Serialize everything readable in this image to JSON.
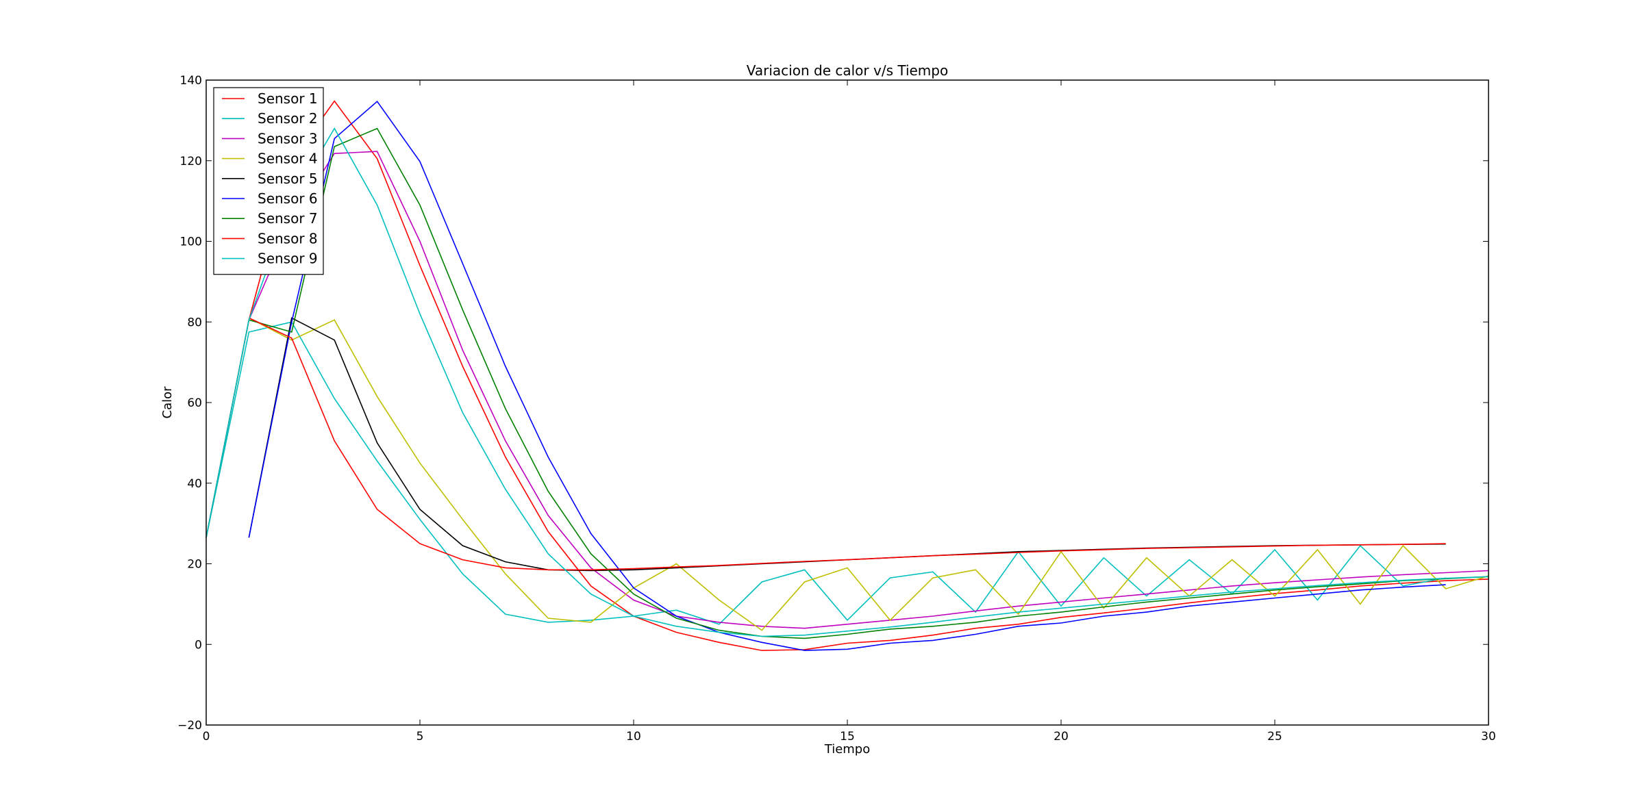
{
  "chart_data": {
    "type": "line",
    "title": "Variacion de calor v/s Tiempo",
    "xlabel": "Tiempo",
    "ylabel": "Calor",
    "xlim": [
      0,
      30
    ],
    "ylim": [
      -20,
      140
    ],
    "xticks": [
      0,
      5,
      10,
      15,
      20,
      25,
      30
    ],
    "yticks": [
      -20,
      0,
      20,
      40,
      60,
      80,
      100,
      120,
      140
    ],
    "grid": false,
    "legend_position": "top-left",
    "series": [
      {
        "name": "Sensor 1",
        "color": "#ff0000",
        "x": [
          0,
          1,
          2,
          3,
          4,
          5,
          6,
          7,
          8,
          9,
          10,
          11,
          12,
          13,
          14,
          15,
          16,
          17,
          18,
          19,
          20,
          21,
          22,
          23,
          24,
          25,
          26,
          27,
          28,
          29,
          30
        ],
        "values": [
          26.5,
          80.5,
          120,
          134.8,
          120.5,
          94,
          69,
          46.5,
          28,
          14.5,
          7,
          3,
          0.5,
          -1.5,
          -1.3,
          0.3,
          1,
          2.3,
          4,
          5,
          6.7,
          7.8,
          9,
          10.3,
          11.5,
          12.6,
          13.5,
          14.5,
          15.2,
          15.8,
          16.2
        ]
      },
      {
        "name": "Sensor 2",
        "color": "#00bfbf",
        "x": [
          0,
          1,
          2,
          3,
          4,
          5,
          6,
          7,
          8,
          9,
          10,
          11,
          12,
          13,
          14,
          15,
          16,
          17,
          18,
          19,
          20,
          21,
          22,
          23,
          24,
          25,
          26,
          27,
          28,
          29
        ],
        "values": [
          26.5,
          77.5,
          80,
          61,
          45.5,
          31,
          17.5,
          7.5,
          5.5,
          6,
          7,
          8.5,
          5,
          15.5,
          18.5,
          6,
          16.5,
          18,
          8,
          23,
          9.5,
          21.5,
          12,
          21,
          12.5,
          23.5,
          11,
          24.5,
          14.5,
          16.5
        ]
      },
      {
        "name": "Sensor 3",
        "color": "#bf00bf",
        "x": [
          0,
          1,
          2,
          3,
          4,
          5,
          6,
          7,
          8,
          9,
          10,
          11,
          12,
          13,
          14,
          15,
          16,
          17,
          18,
          19,
          20,
          21,
          22,
          23,
          24,
          25,
          26,
          27,
          28,
          29,
          30
        ],
        "values": [
          26.5,
          80.5,
          105,
          121.8,
          122.3,
          100,
          73,
          50.5,
          32,
          19,
          11,
          7,
          5.5,
          4.5,
          4,
          5,
          6,
          7,
          8.3,
          9.5,
          10.5,
          11.5,
          12.5,
          13.5,
          14.5,
          15.3,
          16,
          16.7,
          17.3,
          17.8,
          18.3
        ]
      },
      {
        "name": "Sensor 4",
        "color": "#bfbf00",
        "x": [
          1,
          2,
          3,
          4,
          5,
          6,
          7,
          8,
          9,
          10,
          11,
          12,
          13,
          14,
          15,
          16,
          17,
          18,
          19,
          20,
          21,
          22,
          23,
          24,
          25,
          26,
          27,
          28,
          29,
          30
        ],
        "values": [
          81,
          75.5,
          80.5,
          61.5,
          45,
          31,
          17.5,
          6.5,
          5.5,
          14,
          20,
          11,
          3.5,
          15.5,
          19,
          6,
          16.5,
          18.5,
          7.5,
          23,
          9,
          21.5,
          12,
          21,
          12,
          23.5,
          10,
          24.5,
          13.8,
          17
        ]
      },
      {
        "name": "Sensor 5",
        "color": "#000000",
        "x": [
          1,
          2,
          3,
          4,
          5,
          6,
          7,
          8,
          9,
          10,
          11,
          12,
          13,
          14,
          15,
          16,
          17,
          18,
          19,
          20,
          21,
          22,
          23,
          24,
          25,
          26,
          27,
          28,
          29
        ],
        "values": [
          26.5,
          81,
          75.5,
          50,
          33.5,
          24.5,
          20.5,
          18.5,
          18.3,
          18.5,
          19,
          19.5,
          20,
          20.5,
          21,
          21.5,
          22,
          22.5,
          23,
          23.3,
          23.6,
          23.9,
          24.1,
          24.3,
          24.5,
          24.6,
          24.7,
          24.8,
          24.9
        ]
      },
      {
        "name": "Sensor 6",
        "color": "#0000ff",
        "x": [
          1,
          2,
          3,
          4,
          5,
          6,
          7,
          8,
          9,
          10,
          11,
          12,
          13,
          14,
          15,
          16,
          17,
          18,
          19,
          20,
          21,
          22,
          23,
          24,
          25,
          26,
          27,
          28,
          29
        ],
        "values": [
          26.5,
          80,
          125.5,
          134.7,
          119.8,
          94.5,
          69,
          46.5,
          27.5,
          14,
          7,
          3,
          0.5,
          -1.5,
          -1.2,
          0.3,
          1,
          2.5,
          4.5,
          5.3,
          7,
          8,
          9.5,
          10.5,
          11.5,
          12.5,
          13.5,
          14.2,
          14.8
        ]
      },
      {
        "name": "Sensor 7",
        "color": "#008000",
        "x": [
          0,
          1,
          2,
          3,
          4,
          5,
          6,
          7,
          8,
          9,
          10,
          11,
          12,
          13,
          14,
          15,
          16,
          17,
          18,
          19,
          20,
          21,
          22,
          23,
          24,
          25,
          26,
          27,
          28,
          29,
          30
        ],
        "values": [
          26.5,
          80.5,
          77.5,
          123.5,
          128,
          109,
          83,
          58.5,
          38,
          22.5,
          12.5,
          6.5,
          3.5,
          2,
          1.5,
          2.5,
          3.8,
          4.5,
          5.5,
          7,
          8,
          9.3,
          10.5,
          11.5,
          12.5,
          13.5,
          14.3,
          15,
          15.8,
          16.3,
          16.8
        ]
      },
      {
        "name": "Sensor 8",
        "color": "#ff0000",
        "x": [
          1,
          2,
          3,
          4,
          5,
          6,
          7,
          8,
          9,
          10,
          11,
          12,
          13,
          14,
          15,
          16,
          17,
          18,
          19,
          20,
          21,
          22,
          23,
          24,
          25,
          26,
          27,
          28,
          29
        ],
        "values": [
          81,
          76,
          50.5,
          33.5,
          25,
          21,
          19,
          18.5,
          18.5,
          18.8,
          19.2,
          19.6,
          20.1,
          20.6,
          21,
          21.5,
          22,
          22.4,
          22.8,
          23.2,
          23.5,
          23.8,
          24,
          24.2,
          24.4,
          24.6,
          24.7,
          24.8,
          25
        ]
      },
      {
        "name": "Sensor 9",
        "color": "#00bfbf",
        "x": [
          0,
          1,
          2,
          3,
          4,
          5,
          6,
          7,
          8,
          9,
          10,
          11,
          12,
          13,
          14,
          15,
          16,
          17,
          18,
          19,
          20,
          21,
          22,
          23,
          24,
          25,
          26,
          27,
          28,
          29,
          30
        ],
        "values": [
          26.5,
          80.5,
          110,
          128,
          109,
          82,
          57.5,
          38.5,
          22.5,
          12.5,
          7,
          4.5,
          3,
          2,
          2.3,
          3.3,
          4.3,
          5.5,
          6.8,
          8,
          9,
          10,
          11,
          12,
          13,
          13.8,
          14.6,
          15.3,
          15.9,
          16.4,
          16.8
        ]
      }
    ]
  }
}
